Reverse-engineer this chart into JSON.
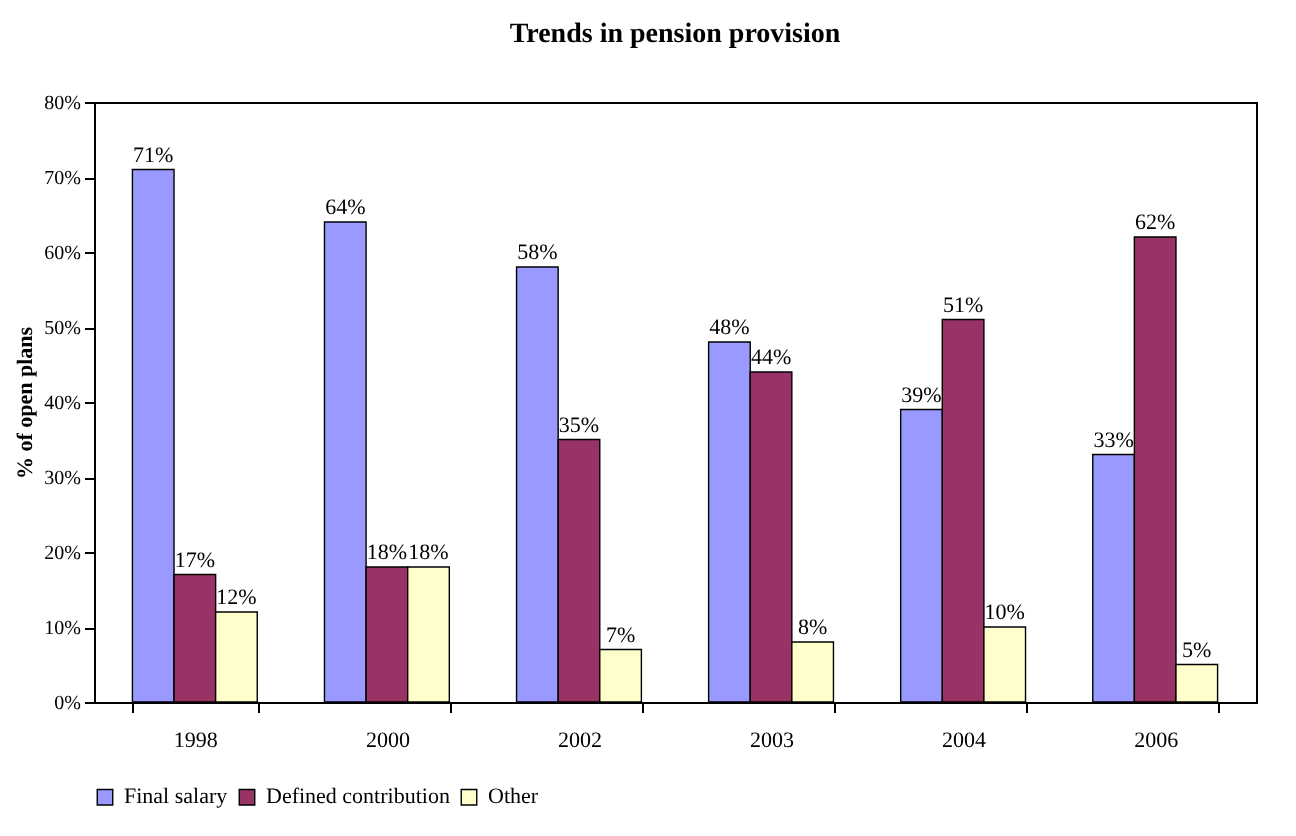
{
  "chart_data": {
    "type": "bar",
    "title": "Trends in pension provision",
    "ylabel": "% of open plans",
    "categories": [
      "1998",
      "2000",
      "2002",
      "2003",
      "2004",
      "2006"
    ],
    "series": [
      {
        "name": "Final salary",
        "color": "#9999ff",
        "values": [
          71,
          64,
          58,
          48,
          39,
          33
        ],
        "value_labels": [
          "71%",
          "64%",
          "58%",
          "48%",
          "39%",
          "33%"
        ]
      },
      {
        "name": "Defined contribution",
        "color": "#993366",
        "values": [
          17,
          18,
          35,
          44,
          51,
          62
        ],
        "value_labels": [
          "17%",
          "18%",
          "35%",
          "44%",
          "51%",
          "62%"
        ]
      },
      {
        "name": "Other",
        "color": "#ffffcc",
        "values": [
          12,
          18,
          7,
          8,
          10,
          5
        ],
        "value_labels": [
          "12%",
          "18%",
          "7%",
          "8%",
          "10%",
          "5%"
        ]
      }
    ],
    "ylim": [
      0,
      80
    ],
    "yticks": [
      {
        "value": 0,
        "label": "0%"
      },
      {
        "value": 10,
        "label": "10%"
      },
      {
        "value": 20,
        "label": "20%"
      },
      {
        "value": 30,
        "label": "30%"
      },
      {
        "value": 40,
        "label": "40%"
      },
      {
        "value": 50,
        "label": "50%"
      },
      {
        "value": 60,
        "label": "60%"
      },
      {
        "value": 70,
        "label": "70%"
      },
      {
        "value": 80,
        "label": "80%"
      }
    ],
    "grid": false,
    "legend": "bottom"
  }
}
